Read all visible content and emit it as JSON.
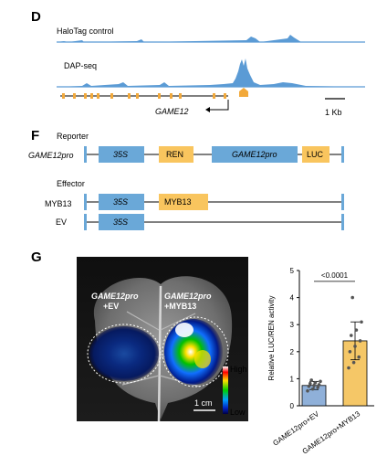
{
  "panel_d": {
    "letter": "D",
    "track1_label": "HaloTag control",
    "track2_label": "DAP-seq",
    "gene_label": "GAME12",
    "scale_label": "1 Kb"
  },
  "panel_f": {
    "letter": "F",
    "reporter_title": "Reporter",
    "reporter_name": "GAME12pro",
    "reporter_boxes": [
      "35S",
      "REN",
      "GAME12pro",
      "LUC"
    ],
    "effector_title": "Effector",
    "effectors": [
      {
        "name": "MYB13",
        "boxes": [
          "35S",
          "MYB13"
        ]
      },
      {
        "name": "EV",
        "boxes": [
          "35S"
        ]
      }
    ]
  },
  "panel_g": {
    "letter": "G",
    "leaf_label_left_1": "GAME12pro",
    "leaf_label_left_2": "+EV",
    "leaf_label_right_1": "GAME12pro",
    "leaf_label_right_2": "+MYB13",
    "colorbar_high": "High",
    "colorbar_low": "Low",
    "scalebar_label": "1 cm"
  },
  "colors": {
    "blue_box": "#6aa8d8",
    "yellow_box": "#f9c55e",
    "track_blue": "#5b9bd5",
    "gene_orange": "#f2a93b",
    "bar_blue": "#8fb0d9",
    "bar_yellow": "#f5c767"
  },
  "chart_data": {
    "type": "bar",
    "categories": [
      "GAME12pro+EV",
      "GAME12pro+MYB13"
    ],
    "values": [
      0.75,
      2.4
    ],
    "errors": [
      0.15,
      0.7
    ],
    "points": [
      [
        0.55,
        0.62,
        0.68,
        0.72,
        0.75,
        0.78,
        0.82,
        0.85,
        0.9,
        0.95
      ],
      [
        1.4,
        1.6,
        1.8,
        2.0,
        2.2,
        2.4,
        2.6,
        2.8,
        3.1,
        4.0
      ]
    ],
    "ylabel": "Relative LUC/REN activity",
    "ylim": [
      0,
      5
    ],
    "yticks": [
      "0",
      "1",
      "2",
      "3",
      "4",
      "5"
    ],
    "significance": "<0.0001"
  }
}
